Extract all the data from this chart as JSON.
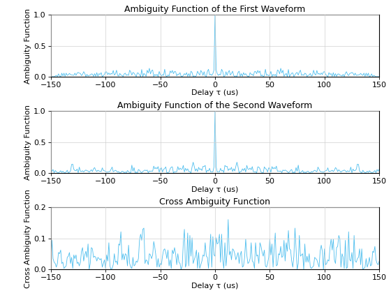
{
  "title1": "Ambiguity Function of the First Waveform",
  "title2": "Ambiguity Function of the Second Waveform",
  "title3": "Cross Ambiguity Function",
  "xlabel": "Delay τ (us)",
  "ylabel1": "Ambiguity Function",
  "ylabel2": "Ambiguity Function",
  "ylabel3": "Cross Ambiguity Function",
  "xlim": [
    -150,
    150
  ],
  "ylim1": [
    0,
    1
  ],
  "ylim2": [
    0,
    1
  ],
  "ylim3": [
    0,
    0.2
  ],
  "yticks1": [
    0,
    0.5,
    1
  ],
  "yticks2": [
    0,
    0.5,
    1
  ],
  "yticks3": [
    0,
    0.1,
    0.2
  ],
  "xticks": [
    -150,
    -100,
    -50,
    0,
    50,
    100,
    150
  ],
  "line_color": "#4DBEEE",
  "line_width": 0.6,
  "title_fs": 9,
  "label_fs": 8,
  "tick_fs": 8,
  "N1": 255,
  "N2": 255,
  "seed1": 42,
  "seed2": 99
}
